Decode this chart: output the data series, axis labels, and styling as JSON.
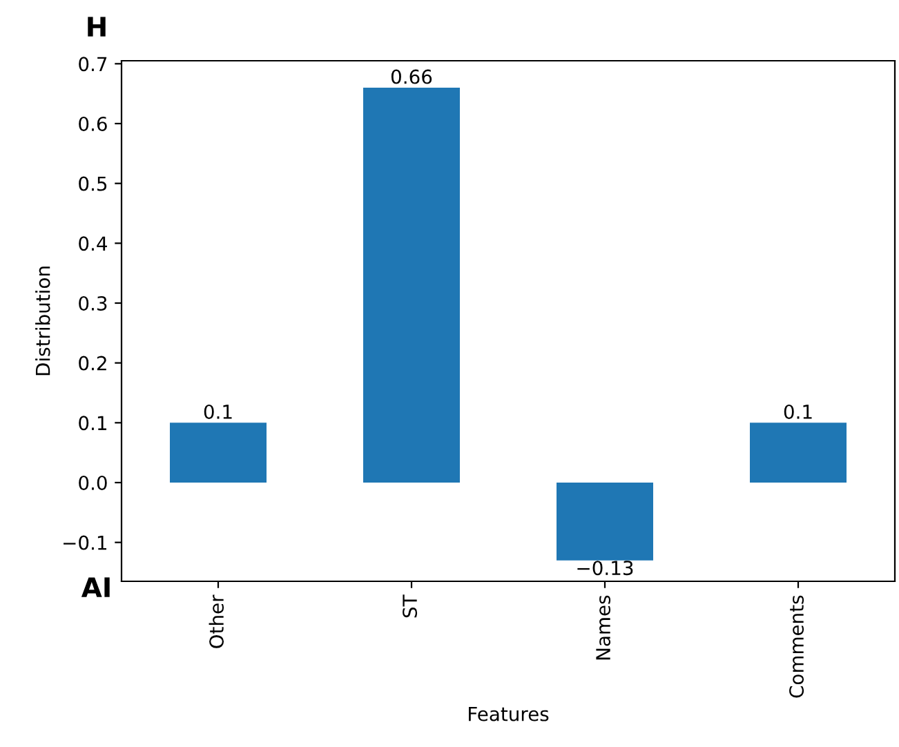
{
  "chart_data": {
    "type": "bar",
    "categories": [
      "Other",
      "ST",
      "Names",
      "Comments"
    ],
    "values": [
      0.1,
      0.66,
      -0.13,
      0.1
    ],
    "value_labels": [
      "0.1",
      "0.66",
      "−0.13",
      "0.1"
    ],
    "color": "#1f77b4",
    "xlabel": "Features",
    "ylabel": "Distribution",
    "ylim": [
      -0.165,
      0.705
    ],
    "yticks": [
      {
        "value": -0.1,
        "label": "−0.1"
      },
      {
        "value": 0.0,
        "label": "0.0"
      },
      0.1,
      0.2,
      0.3,
      0.4,
      0.5,
      0.6,
      0.7
    ],
    "annotations": [
      "H",
      "AI"
    ],
    "grid": false
  }
}
